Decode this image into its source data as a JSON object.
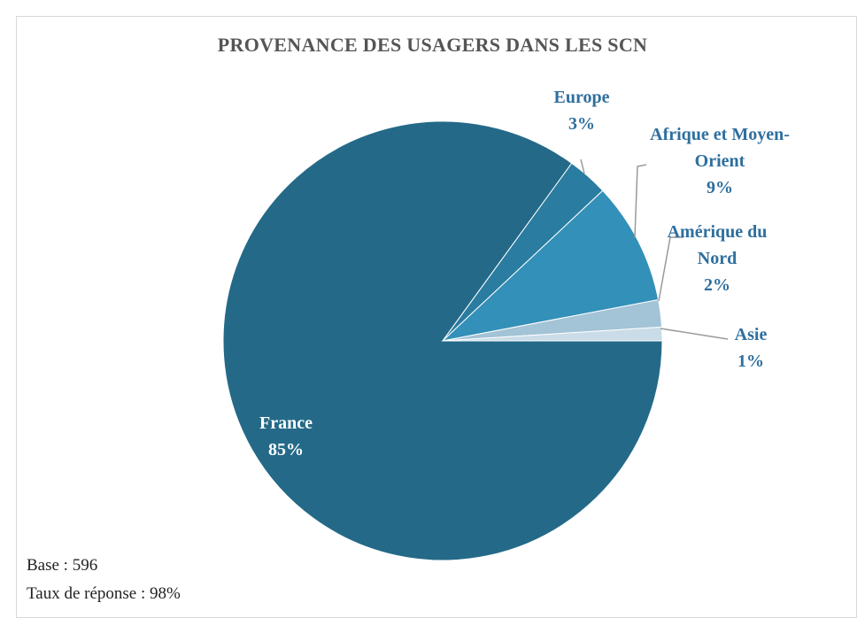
{
  "chart_data": {
    "type": "pie",
    "title": "PROVENANCE DES USAGERS DANS LES SCN",
    "categories": [
      "France",
      "Europe",
      "Afrique et Moyen-Orient",
      "Amérique du Nord",
      "Asie"
    ],
    "values": [
      85,
      3,
      9,
      2,
      1
    ],
    "value_labels": [
      "85%",
      "3%",
      "9%",
      "2%",
      "1%"
    ],
    "colors": [
      "#246a88",
      "#2a7ca0",
      "#3390b8",
      "#a3c3d6",
      "#c9dce8"
    ],
    "notes": [
      "Base : 596",
      "Taux de réponse : 98%"
    ]
  }
}
